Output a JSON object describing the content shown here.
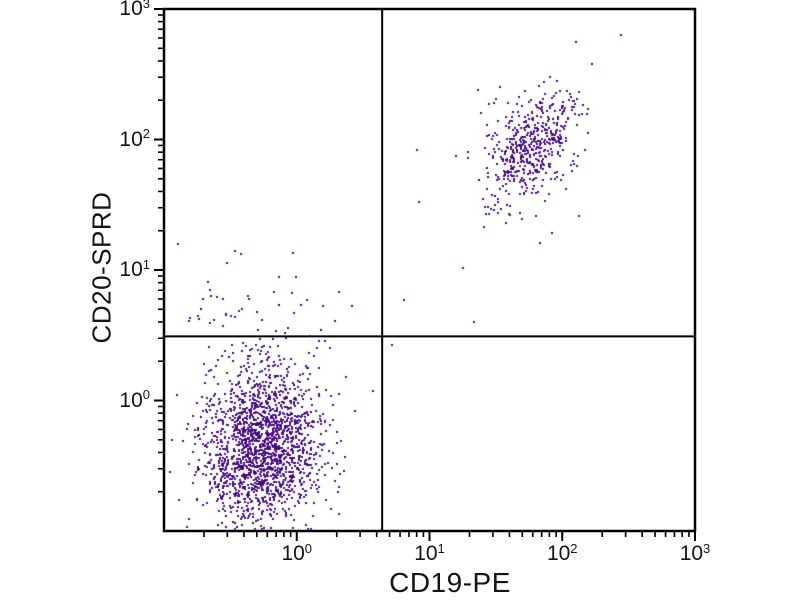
{
  "figure": {
    "background_color": "#ffffff",
    "axis_color": "#000000",
    "text_color": "#141414"
  },
  "chart_data": {
    "type": "scatter",
    "subtype": "flow-cytometry-quadrant-dot-plot",
    "title": "",
    "xlabel": "CD19-PE",
    "ylabel": "CD20-SPRD",
    "x_scale": "log",
    "y_scale": "log",
    "x_range_exp": [
      -1,
      3
    ],
    "y_range_exp": [
      -1,
      3
    ],
    "tick_base": "10",
    "x_tick_exps": [
      0,
      1,
      2,
      3
    ],
    "y_tick_exps": [
      0,
      1,
      2,
      3
    ],
    "grid": false,
    "legend": false,
    "quadrant_gate": {
      "x_value": 4.4,
      "y_value": 3.1
    },
    "dot_color": "#4a1086",
    "dot_color_dark": "#3c0a66",
    "dot_size_px": 2,
    "populations": [
      {
        "name": "double-negative-lymphocytes",
        "quadrant": "lower-left",
        "center": [
          0.55,
          0.43
        ],
        "sigma_decades": [
          0.22,
          0.3
        ],
        "corr": 0.05,
        "count": 1800
      },
      {
        "name": "double-negative-upper-tail",
        "quadrant": "left",
        "center": [
          0.45,
          2.8
        ],
        "sigma_decades": [
          0.33,
          0.35
        ],
        "corr": 0.0,
        "count": 80
      },
      {
        "name": "cd19-cd20-double-positive",
        "quadrant": "upper-right",
        "center": [
          58,
          90
        ],
        "sigma_decades": [
          0.17,
          0.21
        ],
        "corr": 0.45,
        "count": 470
      },
      {
        "name": "double-positive-halo",
        "quadrant": "upper-right",
        "center": [
          52,
          70
        ],
        "sigma_decades": [
          0.33,
          0.38
        ],
        "corr": 0.3,
        "count": 55
      }
    ],
    "outlier_points": [
      [
        5.2,
        2.64
      ],
      [
        21.5,
        4.0
      ],
      [
        6.4,
        5.9
      ],
      [
        2.07,
        6.8
      ],
      [
        2.6,
        5.3
      ],
      [
        1.93,
        4.1
      ],
      [
        0.93,
        13.6
      ],
      [
        0.98,
        8.8
      ]
    ]
  }
}
